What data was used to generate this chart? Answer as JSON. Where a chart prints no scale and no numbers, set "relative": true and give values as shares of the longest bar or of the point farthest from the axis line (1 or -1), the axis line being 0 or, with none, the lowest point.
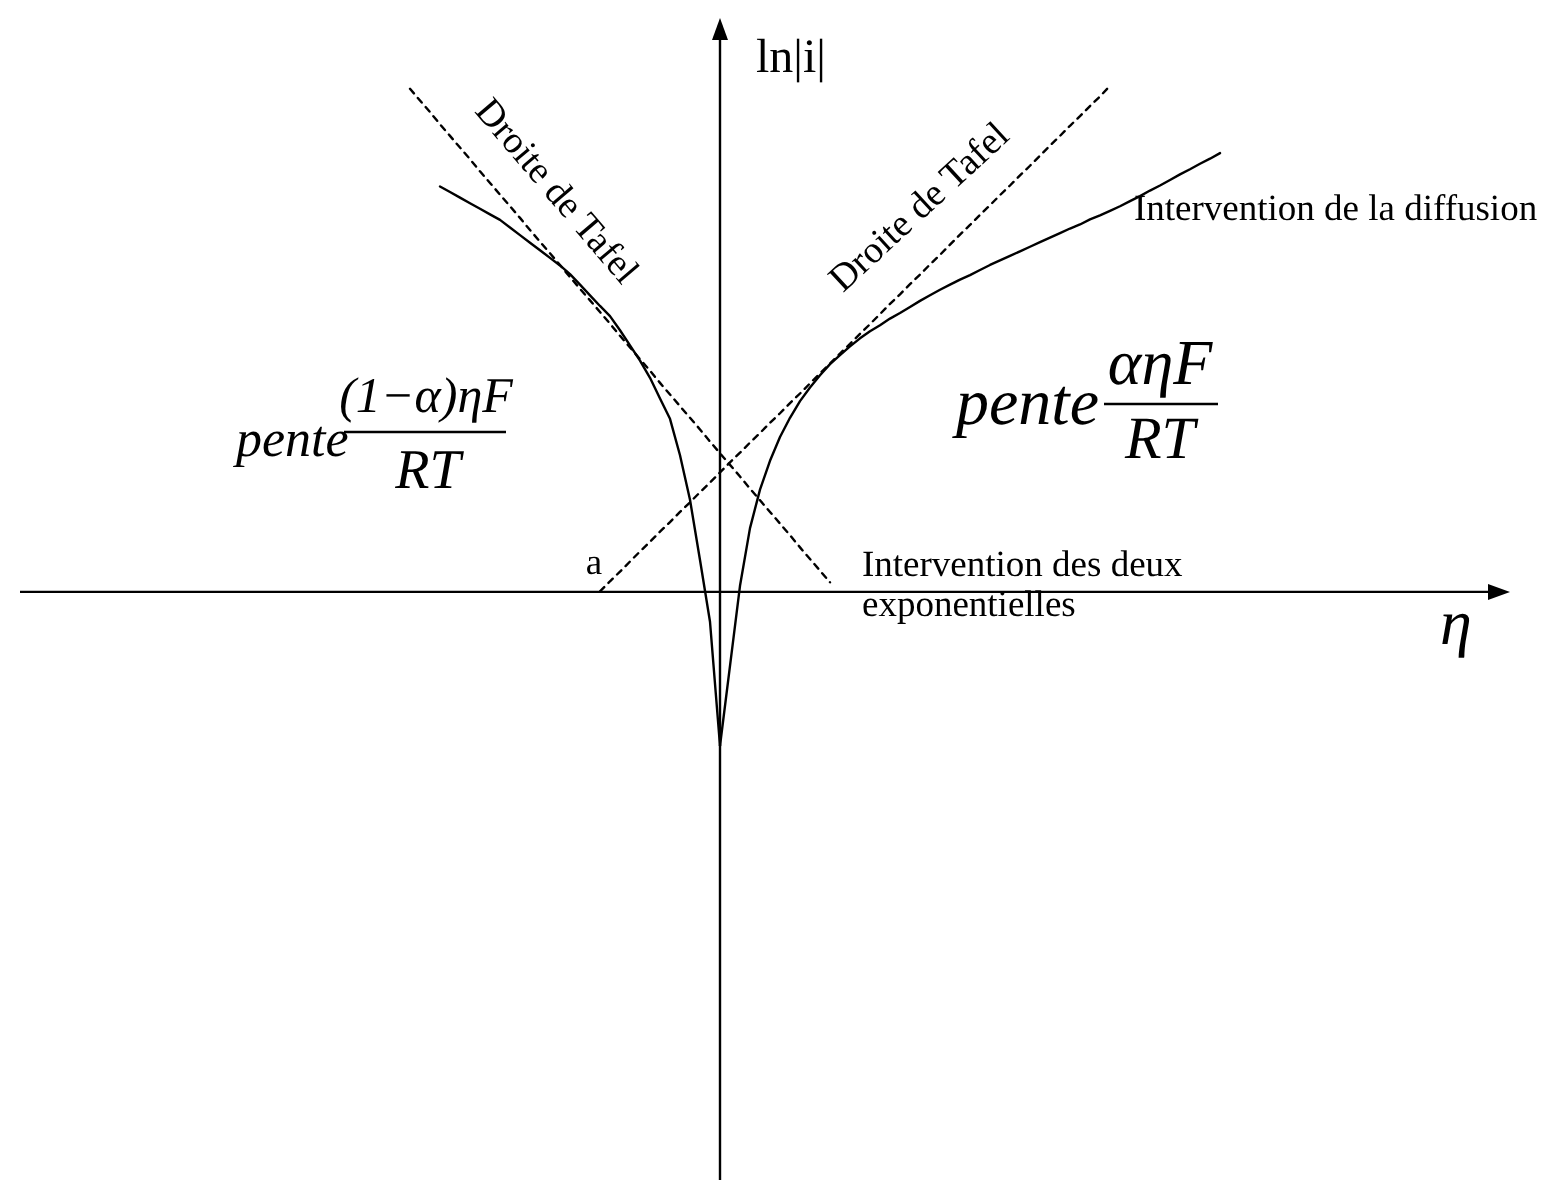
{
  "chart_data": {
    "type": "line",
    "relative": true,
    "xlabel": "η",
    "ylabel": "ln|i|",
    "categories": [
      null,
      null,
      null,
      null,
      null,
      null,
      null,
      null,
      null,
      null,
      null,
      null,
      null,
      null,
      null,
      null,
      null,
      null,
      null,
      null,
      null,
      null,
      null,
      null,
      null,
      null,
      null,
      null,
      null,
      null,
      null,
      null,
      null,
      null,
      null,
      null,
      null,
      null,
      null,
      null,
      null,
      null,
      null,
      null,
      null,
      null,
      null,
      null,
      null,
      null,
      null,
      null,
      null,
      null,
      null,
      null,
      null,
      null,
      null,
      null,
      null,
      null,
      null,
      null,
      null,
      null,
      null,
      null,
      null,
      null,
      null,
      null,
      null,
      null,
      null,
      null,
      null,
      null,
      null,
      null,
      null,
      null,
      null,
      null,
      null,
      null,
      null,
      null,
      null,
      null,
      null,
      null,
      null,
      null,
      null,
      null,
      null,
      null,
      null,
      null,
      null,
      null,
      null,
      null,
      null,
      null,
      null,
      null,
      null,
      null,
      null,
      null,
      null,
      null,
      null,
      null,
      null,
      null,
      null,
      null,
      null,
      null,
      null,
      null,
      null,
      null,
      null,
      null,
      null,
      null,
      null,
      null,
      null,
      null,
      null,
      null,
      null,
      null,
      null,
      null,
      null,
      null,
      null,
      null,
      null,
      null,
      null,
      null,
      null
    ],
    "series": [
      {
        "color": "#000000",
        "line_style": "solid",
        "values": [
          null,
          null,
          null,
          null,
          null,
          null,
          null,
          null,
          null,
          null,
          null,
          null,
          null,
          null,
          null,
          null,
          null,
          null,
          null,
          null,
          null,
          null,
          null,
          null,
          null,
          null,
          null,
          null,
          null,
          null,
          null,
          null,
          null,
          null,
          null,
          null,
          null,
          null,
          null,
          null,
          null,
          null,
          0.801,
          0.79,
          0.779,
          0.768,
          0.757,
          0.746,
          0.735,
          0.72,
          0.705,
          0.69,
          0.675,
          0.66,
          0.645,
          0.628,
          0.607,
          0.586,
          0.565,
          0.545,
          0.517,
          0.487,
          0.457,
          0.423,
          0.382,
          0.342,
          0.27,
          0.182,
          0.063,
          -0.059,
          -0.304,
          null,
          null,
          null,
          null,
          null,
          null,
          null,
          null,
          null,
          null,
          null,
          null,
          null,
          null,
          null,
          null,
          null,
          null,
          null,
          null,
          null,
          null,
          null,
          null,
          null,
          null,
          null,
          null,
          null,
          null,
          null,
          null,
          null,
          null,
          null,
          null,
          null,
          null,
          null,
          null,
          null,
          null,
          null,
          null,
          null,
          null,
          null,
          null,
          null,
          null,
          null,
          null,
          null,
          null,
          null,
          null,
          null,
          null,
          null,
          null,
          null,
          null,
          null,
          null,
          null,
          null,
          null,
          null,
          null,
          null,
          null,
          null,
          null,
          null,
          null,
          null,
          null,
          null
        ]
      },
      {
        "color": "#000000",
        "line_style": "solid",
        "values": [
          null,
          null,
          null,
          null,
          null,
          null,
          null,
          null,
          null,
          null,
          null,
          null,
          null,
          null,
          null,
          null,
          null,
          null,
          null,
          null,
          null,
          null,
          null,
          null,
          null,
          null,
          null,
          null,
          null,
          null,
          null,
          null,
          null,
          null,
          null,
          null,
          null,
          null,
          null,
          null,
          null,
          null,
          null,
          null,
          null,
          null,
          null,
          null,
          null,
          null,
          null,
          null,
          null,
          null,
          null,
          null,
          null,
          null,
          null,
          null,
          null,
          null,
          null,
          null,
          null,
          null,
          null,
          null,
          null,
          null,
          -0.304,
          -0.146,
          0.012,
          0.126,
          0.202,
          0.259,
          0.306,
          0.344,
          0.377,
          0.404,
          0.428,
          0.45,
          0.468,
          0.485,
          0.501,
          0.515,
          0.527,
          0.54,
          0.551,
          0.563,
          0.575,
          0.586,
          0.597,
          0.607,
          0.617,
          0.626,
          0.636,
          0.646,
          0.655,
          0.664,
          0.673,
          0.682,
          0.691,
          0.7,
          0.709,
          0.718,
          0.726,
          0.736,
          0.744,
          0.753,
          0.762,
          0.772,
          0.782,
          0.793,
          0.803,
          0.814,
          0.825,
          0.835,
          0.846,
          0.856,
          0.867,
          null,
          null,
          null,
          null,
          null,
          null,
          null,
          null,
          null,
          null,
          null,
          null,
          null,
          null,
          null,
          null,
          null,
          null,
          null,
          null,
          null,
          null,
          null,
          null,
          null,
          null,
          null,
          null
        ]
      },
      {
        "name": "Droite de Tafel",
        "color": "#000000",
        "line_style": "dashed",
        "values": [
          null,
          null,
          null,
          null,
          null,
          null,
          null,
          null,
          null,
          null,
          null,
          null,
          null,
          null,
          null,
          null,
          null,
          null,
          null,
          null,
          null,
          null,
          null,
          null,
          null,
          null,
          null,
          null,
          null,
          null,
          null,
          null,
          null,
          null,
          null,
          null,
          null,
          null,
          null,
          0.994,
          0.971,
          0.948,
          0.924,
          0.901,
          0.878,
          0.855,
          0.831,
          0.808,
          0.785,
          0.762,
          0.739,
          0.715,
          0.692,
          0.669,
          0.646,
          0.622,
          0.599,
          0.576,
          0.553,
          0.53,
          0.506,
          0.483,
          0.46,
          0.437,
          0.413,
          0.39,
          0.367,
          0.344,
          0.321,
          0.297,
          0.274,
          0.251,
          0.228,
          0.204,
          0.181,
          0.158,
          0.135,
          0.112,
          0.088,
          0.065,
          0.042,
          0.019,
          null,
          null,
          null,
          null,
          null,
          null,
          null,
          null,
          null,
          null,
          null,
          null,
          null,
          null,
          null,
          null,
          null,
          null,
          null,
          null,
          null,
          null,
          null,
          null,
          null,
          null,
          null,
          null,
          null,
          null,
          null,
          null,
          null,
          null,
          null,
          null,
          null,
          null,
          null,
          null,
          null,
          null,
          null,
          null,
          null,
          null,
          null,
          null,
          null,
          null,
          null,
          null,
          null,
          null,
          null,
          null,
          null,
          null,
          null,
          null,
          null,
          null,
          null,
          null,
          null,
          null,
          null
        ]
      },
      {
        "name": "Droite de Tafel",
        "color": "#000000",
        "line_style": "dashed",
        "values": [
          null,
          null,
          null,
          null,
          null,
          null,
          null,
          null,
          null,
          null,
          null,
          null,
          null,
          null,
          null,
          null,
          null,
          null,
          null,
          null,
          null,
          null,
          null,
          null,
          null,
          null,
          null,
          null,
          null,
          null,
          null,
          null,
          null,
          null,
          null,
          null,
          null,
          null,
          null,
          null,
          null,
          null,
          null,
          null,
          null,
          null,
          null,
          null,
          null,
          null,
          null,
          null,
          null,
          null,
          null,
          null,
          null,
          null,
          0.001,
          0.021,
          0.04,
          0.06,
          0.08,
          0.099,
          0.119,
          0.138,
          0.158,
          0.177,
          0.197,
          0.216,
          0.236,
          0.256,
          0.275,
          0.295,
          0.314,
          0.334,
          0.353,
          0.373,
          0.392,
          0.412,
          0.432,
          0.451,
          0.471,
          0.49,
          0.51,
          0.529,
          0.549,
          0.569,
          0.588,
          0.608,
          0.627,
          0.647,
          0.666,
          0.686,
          0.706,
          0.725,
          0.745,
          0.764,
          0.784,
          0.803,
          0.823,
          0.842,
          0.862,
          0.882,
          0.901,
          0.921,
          0.94,
          0.96,
          0.979,
          1.0,
          null,
          null,
          null,
          null,
          null,
          null,
          null,
          null,
          null,
          null,
          null,
          null,
          null,
          null,
          null,
          null,
          null,
          null,
          null,
          null,
          null,
          null,
          null,
          null,
          null,
          null,
          null,
          null,
          null,
          null,
          null,
          null,
          null,
          null,
          null,
          null,
          null,
          null,
          null
        ]
      }
    ],
    "annotations": [
      "Intervention de la diffusion",
      "Intervention des deux exponentielles",
      "a",
      "pente",
      "(1−α)ηF",
      "RT",
      "pente",
      "αηF",
      "RT"
    ]
  }
}
